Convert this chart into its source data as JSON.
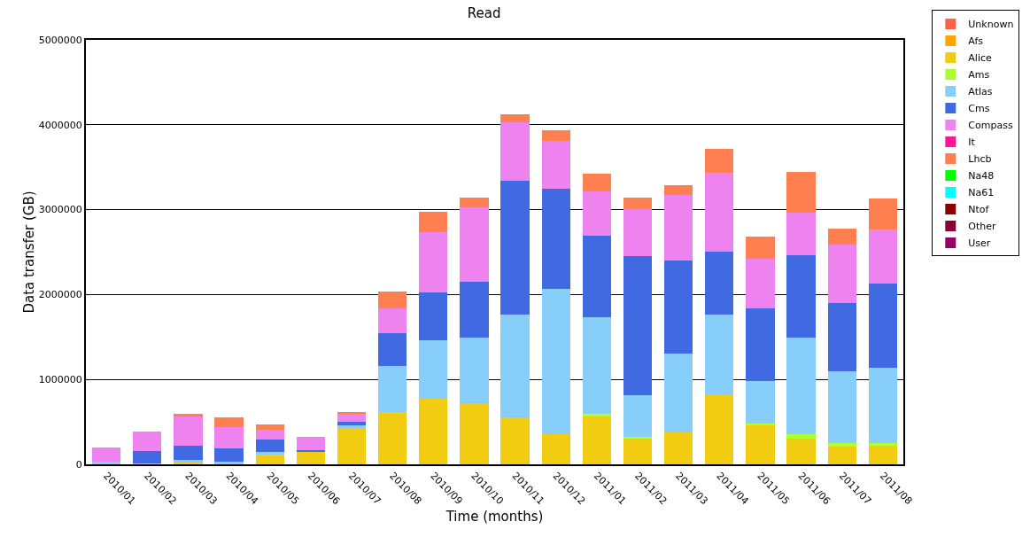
{
  "chart_data": {
    "type": "bar",
    "title": "Read",
    "xlabel": "Time (months)",
    "ylabel": "Data transfer (GB)",
    "stacked": true,
    "grid": "y",
    "legend": "top right",
    "categories": [
      "2010/01",
      "2010/02",
      "2010/03",
      "2010/04",
      "2010/05",
      "2010/06",
      "2010/07",
      "2010/08",
      "2010/09",
      "2010/10",
      "2010/11",
      "2010/12",
      "2011/01",
      "2011/02",
      "2011/03",
      "2011/04",
      "2011/05",
      "2011/06",
      "2011/07",
      "2011/08"
    ],
    "ylim": [
      0,
      5000000
    ],
    "yticks": [
      0,
      1000000,
      2000000,
      3000000,
      4000000,
      5000000
    ],
    "series": [
      {
        "name": "Unknown",
        "color": "#ff6347",
        "values": [
          0,
          0,
          0,
          0,
          0,
          0,
          0,
          0,
          0,
          0,
          0,
          0,
          0,
          0,
          0,
          0,
          0,
          0,
          0,
          0
        ]
      },
      {
        "name": "Afs",
        "color": "#ffa500",
        "values": [
          0,
          0,
          0,
          0,
          0,
          0,
          0,
          0,
          0,
          0,
          0,
          0,
          0,
          0,
          0,
          0,
          0,
          0,
          0,
          0
        ]
      },
      {
        "name": "Alice",
        "color": "#f2cc10",
        "values": [
          0,
          0,
          20000,
          10000,
          110000,
          150000,
          430000,
          620000,
          770000,
          720000,
          550000,
          360000,
          560000,
          310000,
          380000,
          810000,
          460000,
          300000,
          210000,
          220000
        ]
      },
      {
        "name": "Ams",
        "color": "#adff2f",
        "values": [
          0,
          0,
          0,
          0,
          0,
          0,
          0,
          0,
          0,
          0,
          0,
          0,
          40000,
          10000,
          0,
          0,
          20000,
          50000,
          40000,
          30000
        ]
      },
      {
        "name": "Atlas",
        "color": "#87cefa",
        "values": [
          30000,
          10000,
          30000,
          20000,
          40000,
          0,
          30000,
          540000,
          690000,
          770000,
          1210000,
          1710000,
          1130000,
          490000,
          930000,
          950000,
          500000,
          1140000,
          850000,
          890000
        ]
      },
      {
        "name": "Cms",
        "color": "#4169e1",
        "values": [
          0,
          150000,
          170000,
          160000,
          140000,
          20000,
          40000,
          380000,
          560000,
          660000,
          1580000,
          1180000,
          960000,
          1640000,
          1090000,
          750000,
          860000,
          970000,
          800000,
          990000
        ]
      },
      {
        "name": "Compass",
        "color": "#ee82ee",
        "values": [
          170000,
          230000,
          340000,
          250000,
          120000,
          150000,
          100000,
          300000,
          720000,
          880000,
          690000,
          560000,
          520000,
          560000,
          770000,
          920000,
          580000,
          500000,
          690000,
          640000
        ]
      },
      {
        "name": "It",
        "color": "#ff1493",
        "values": [
          0,
          0,
          0,
          0,
          0,
          0,
          0,
          0,
          0,
          0,
          0,
          0,
          0,
          0,
          0,
          0,
          0,
          0,
          0,
          0
        ]
      },
      {
        "name": "Lhcb",
        "color": "#ff7f50",
        "values": [
          0,
          0,
          30000,
          110000,
          60000,
          0,
          20000,
          200000,
          230000,
          110000,
          90000,
          130000,
          210000,
          130000,
          120000,
          290000,
          260000,
          480000,
          190000,
          360000
        ]
      },
      {
        "name": "Na48",
        "color": "#00ff00",
        "values": [
          0,
          0,
          0,
          0,
          0,
          0,
          0,
          0,
          0,
          0,
          0,
          0,
          0,
          0,
          0,
          0,
          0,
          0,
          0,
          0
        ]
      },
      {
        "name": "Na61",
        "color": "#00ffff",
        "values": [
          0,
          0,
          0,
          0,
          0,
          0,
          0,
          0,
          0,
          0,
          0,
          0,
          0,
          0,
          0,
          0,
          0,
          0,
          0,
          0
        ]
      },
      {
        "name": "Ntof",
        "color": "#8b0000",
        "values": [
          0,
          0,
          0,
          0,
          0,
          0,
          0,
          0,
          0,
          0,
          0,
          0,
          0,
          0,
          0,
          0,
          0,
          0,
          0,
          0
        ]
      },
      {
        "name": "Other",
        "color": "#8b0036",
        "values": [
          0,
          0,
          0,
          0,
          0,
          0,
          0,
          0,
          0,
          0,
          0,
          0,
          0,
          0,
          0,
          0,
          0,
          0,
          0,
          0
        ]
      },
      {
        "name": "User",
        "color": "#990066",
        "values": [
          0,
          0,
          0,
          0,
          0,
          0,
          0,
          0,
          0,
          0,
          0,
          0,
          0,
          0,
          0,
          0,
          0,
          0,
          0,
          0
        ]
      }
    ]
  }
}
